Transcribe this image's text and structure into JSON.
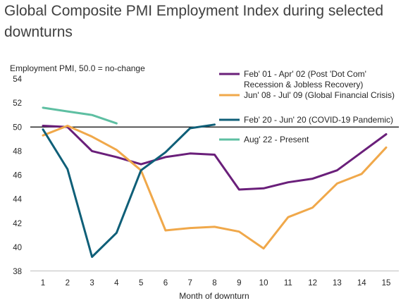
{
  "chart_data": {
    "type": "line",
    "title": [
      "Global Composite PMI Employment Index during selected",
      "downturns"
    ],
    "ylabel": "Employment PMI, 50.0 = no-change",
    "xlabel": "Month of downturn",
    "xlim": [
      1,
      15
    ],
    "ylim": [
      38,
      54
    ],
    "x_ticks": [
      1,
      2,
      3,
      4,
      5,
      6,
      7,
      8,
      9,
      10,
      11,
      12,
      13,
      14,
      15
    ],
    "y_ticks": [
      38,
      40,
      42,
      44,
      46,
      48,
      50,
      52,
      54
    ],
    "reference_line": 50,
    "grid": false,
    "legend_position": "top-right",
    "series": [
      {
        "name": [
          "Feb' 01 - Apr' 02 (Post 'Dot Com'",
          "Recession & Jobless Recovery)"
        ],
        "color": "#6a1f7a",
        "x": [
          1,
          2,
          3,
          4,
          5,
          6,
          7,
          8,
          9,
          10,
          11,
          12,
          13,
          14,
          15
        ],
        "values": [
          50.1,
          50.0,
          48.0,
          47.5,
          46.9,
          47.5,
          47.8,
          47.7,
          44.8,
          44.9,
          45.4,
          45.7,
          46.4,
          47.9,
          49.4
        ]
      },
      {
        "name": [
          "Jun' 08 - Jul' 09 (Global Financial Crisis)"
        ],
        "color": "#f0a84a",
        "x": [
          1,
          2,
          3,
          4,
          5,
          6,
          7,
          8,
          9,
          10,
          11,
          12,
          13,
          14,
          15
        ],
        "values": [
          49.3,
          50.1,
          49.2,
          48.1,
          46.4,
          41.4,
          41.6,
          41.7,
          41.3,
          39.9,
          42.5,
          43.3,
          45.3,
          46.1,
          48.3
        ]
      },
      {
        "name": [
          "Feb' 20 - Jun' 20 (COVID-19 Pandemic)"
        ],
        "color": "#0f5f78",
        "x": [
          1,
          2,
          3,
          4,
          5,
          6,
          7,
          8
        ],
        "values": [
          49.8,
          46.5,
          39.2,
          41.2,
          46.4,
          47.9,
          49.9,
          50.2
        ]
      },
      {
        "name": [
          "Aug' 22 - Present"
        ],
        "color": "#5ebfa2",
        "x": [
          1,
          2,
          3,
          4
        ],
        "values": [
          51.6,
          51.3,
          51.0,
          50.3
        ]
      }
    ]
  }
}
